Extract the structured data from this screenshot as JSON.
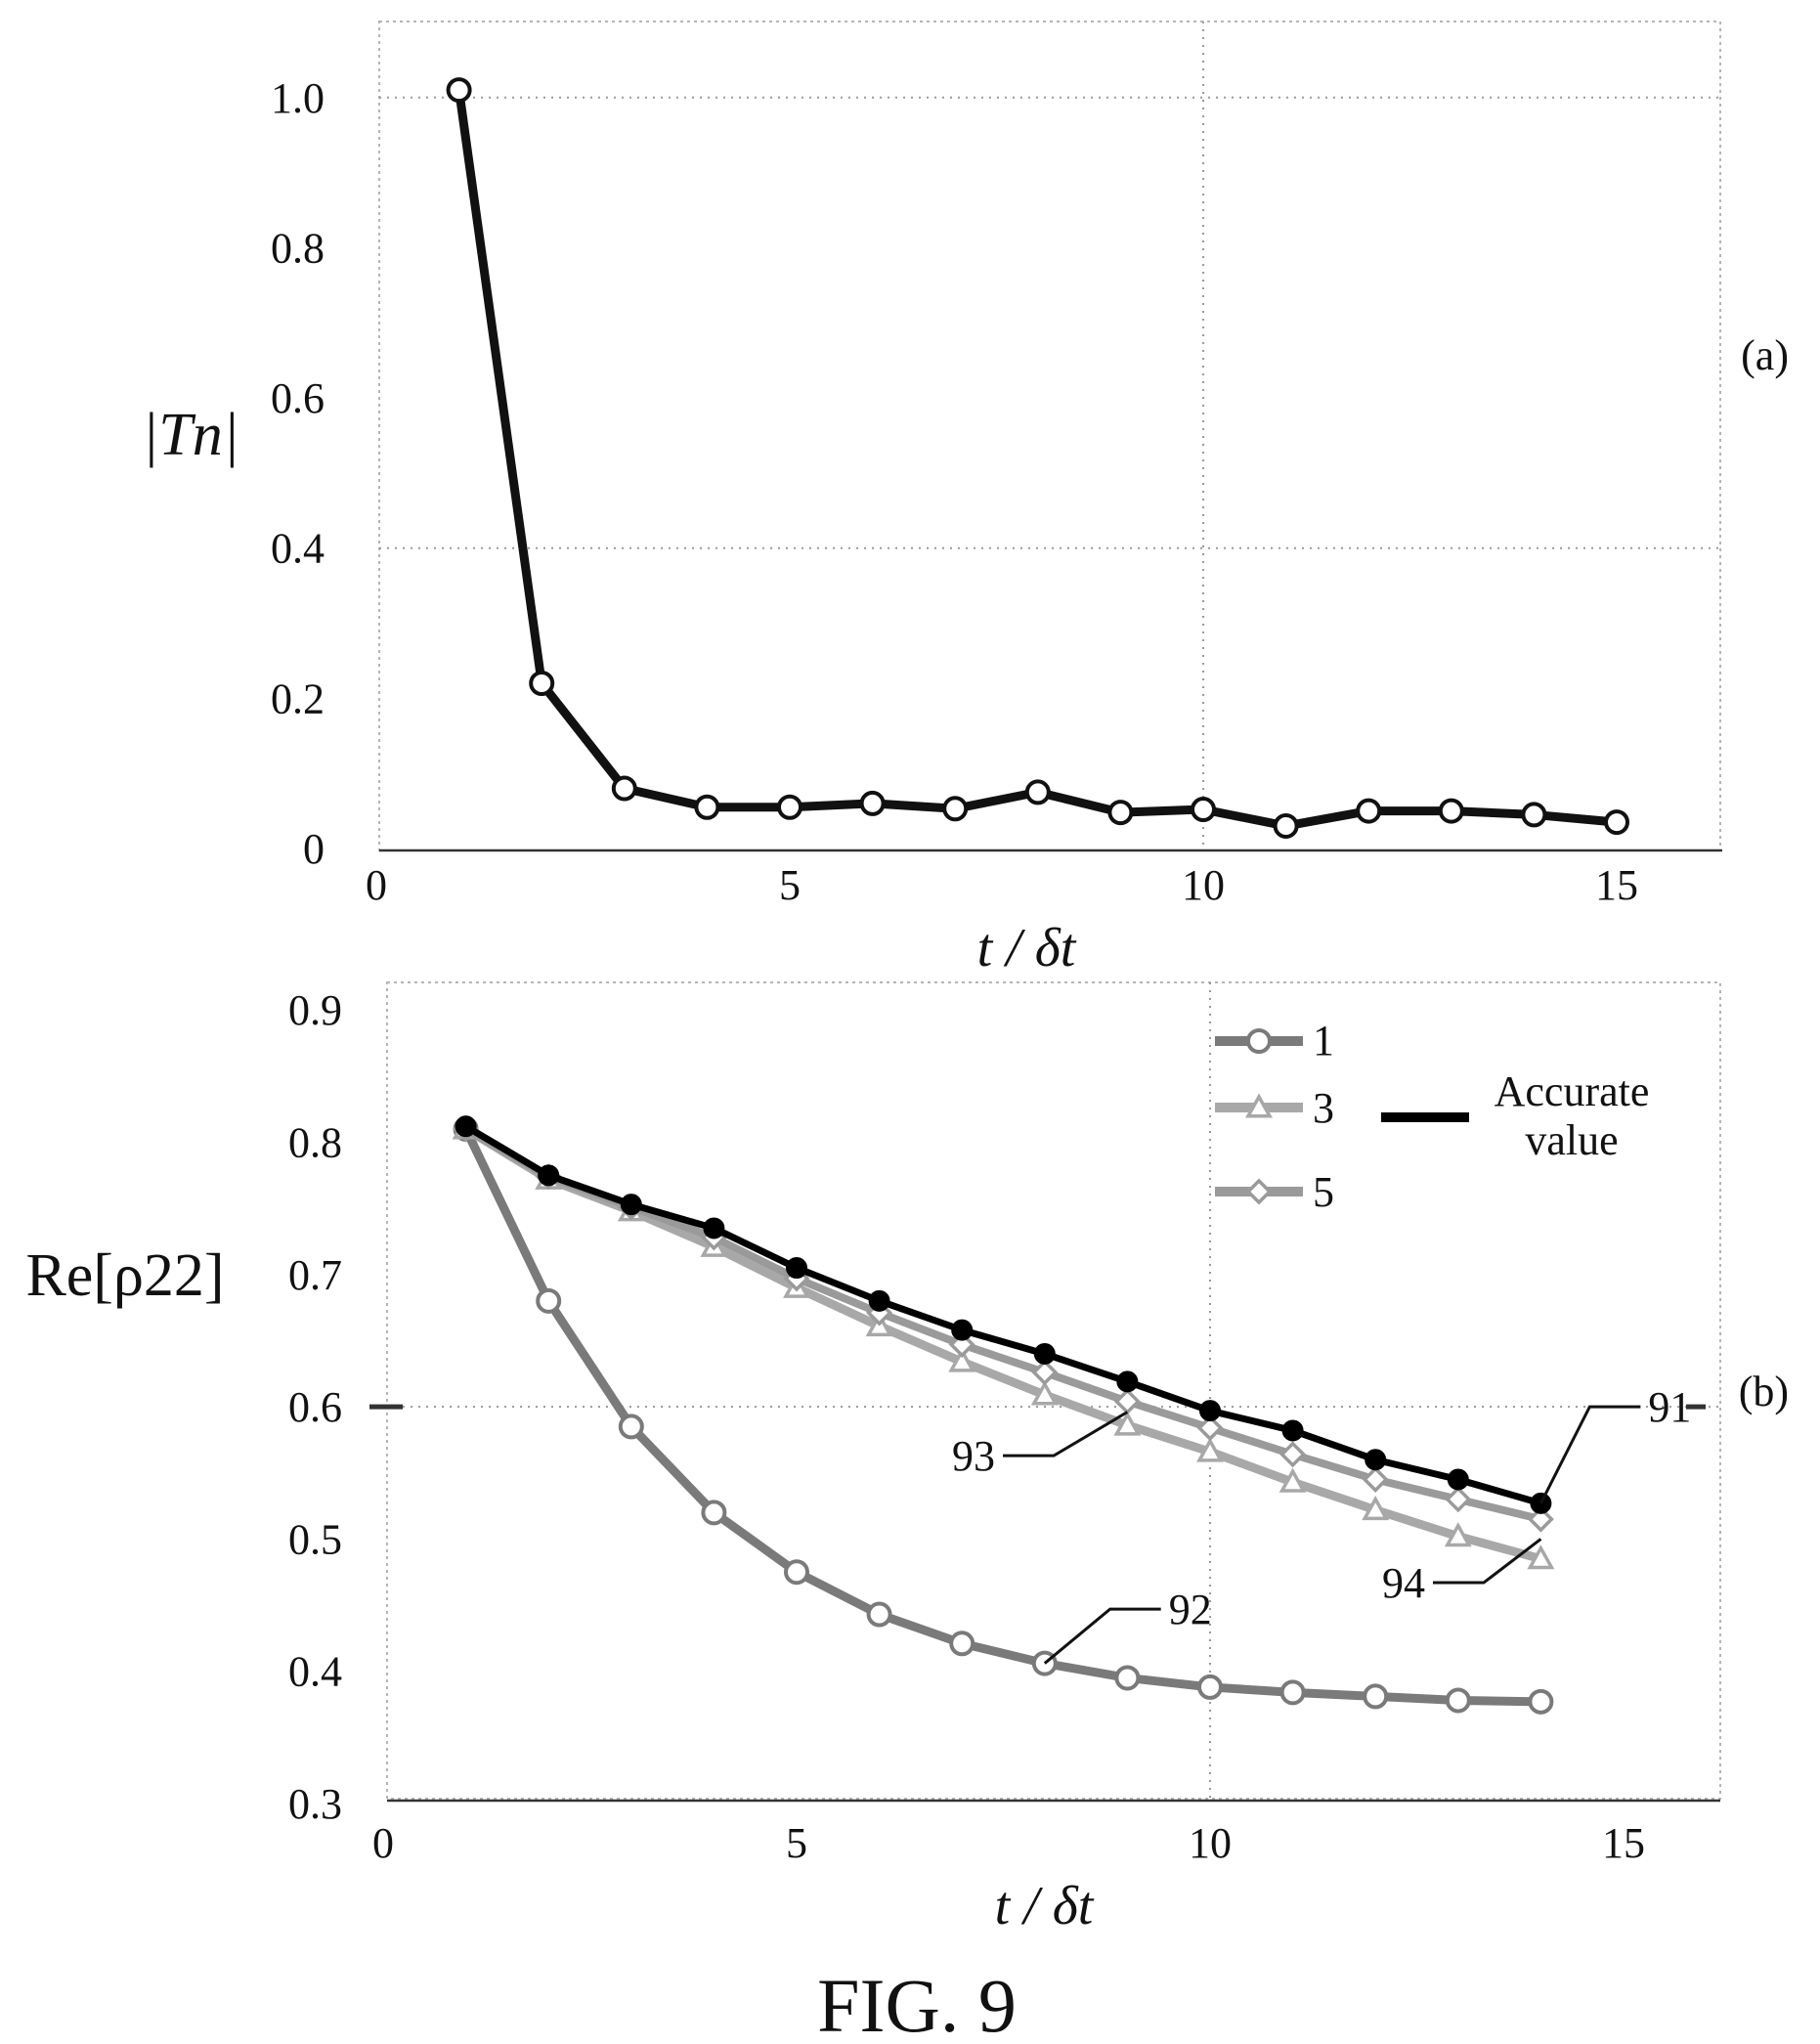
{
  "figure_caption": "FIG. 9",
  "chart_data": [
    {
      "type": "line",
      "panel_label": "(a)",
      "xlabel": "t / δt",
      "ylabel": "|Tn|",
      "xlim": [
        0,
        16
      ],
      "ylim": [
        0,
        1.1
      ],
      "x_ticks": [
        "0",
        "5",
        "10",
        "15"
      ],
      "y_ticks": [
        "0",
        "0.2",
        "0.4",
        "0.6",
        "0.8",
        "1.0"
      ],
      "grid": true,
      "series": [
        {
          "x": [
            1,
            2,
            3,
            4,
            5,
            6,
            7,
            8,
            9,
            10,
            11,
            12,
            13,
            14,
            15
          ],
          "values": [
            1.01,
            0.22,
            0.08,
            0.055,
            0.055,
            0.06,
            0.053,
            0.075,
            0.048,
            0.052,
            0.03,
            0.05,
            0.05,
            0.045,
            0.035
          ],
          "color": "#111111",
          "marker": "circle-open"
        }
      ]
    },
    {
      "type": "line",
      "panel_label": "(b)",
      "xlabel": "t / δt",
      "ylabel": "Re[ρ22]",
      "xlim": [
        0,
        16
      ],
      "ylim": [
        0.3,
        0.9
      ],
      "x_ticks": [
        "0",
        "5",
        "10",
        "15"
      ],
      "y_ticks": [
        "0.3",
        "0.4",
        "0.5",
        "0.6",
        "0.7",
        "0.8",
        "0.9"
      ],
      "grid": true,
      "legend_position": "top-right",
      "series": [
        {
          "name": "1",
          "x": [
            1,
            2,
            3,
            4,
            5,
            6,
            7,
            8,
            9,
            10,
            11,
            12,
            13,
            14
          ],
          "values": [
            0.81,
            0.68,
            0.585,
            0.52,
            0.475,
            0.443,
            0.421,
            0.406,
            0.395,
            0.388,
            0.384,
            0.381,
            0.378,
            0.377
          ],
          "color": "#7a7a7a",
          "marker": "circle-open"
        },
        {
          "name": "3",
          "x": [
            1,
            2,
            3,
            4,
            5,
            6,
            7,
            8,
            9,
            10,
            11,
            12,
            13,
            14
          ],
          "values": [
            0.81,
            0.772,
            0.748,
            0.721,
            0.69,
            0.661,
            0.634,
            0.609,
            0.586,
            0.566,
            0.543,
            0.522,
            0.502,
            0.485
          ],
          "color": "#a8a8a8",
          "marker": "triangle-open"
        },
        {
          "name": "5",
          "x": [
            1,
            2,
            3,
            4,
            5,
            6,
            7,
            8,
            9,
            10,
            11,
            12,
            13,
            14
          ],
          "values": [
            0.81,
            0.774,
            0.751,
            0.728,
            0.697,
            0.671,
            0.647,
            0.626,
            0.604,
            0.584,
            0.564,
            0.545,
            0.53,
            0.515
          ],
          "color": "#9a9a9a",
          "marker": "diamond-open"
        },
        {
          "name": "Accurate value",
          "x": [
            1,
            2,
            3,
            4,
            5,
            6,
            7,
            8,
            9,
            10,
            11,
            12,
            13,
            14
          ],
          "values": [
            0.812,
            0.775,
            0.753,
            0.735,
            0.705,
            0.68,
            0.658,
            0.64,
            0.619,
            0.597,
            0.582,
            0.56,
            0.545,
            0.527
          ],
          "color": "#000000",
          "marker": "circle-filled"
        }
      ],
      "legend": [
        {
          "label": "1"
        },
        {
          "label": "3"
        },
        {
          "label": "5"
        },
        {
          "label_line1": "Accurate",
          "label_line2": "value"
        }
      ],
      "annotations": [
        {
          "text": "91",
          "series": "Accurate value",
          "x": 14,
          "y": 0.527,
          "text_x": 15.3,
          "text_y": 0.6
        },
        {
          "text": "92",
          "series": "1",
          "x": 8,
          "y": 0.406,
          "text_x": 9.5,
          "text_y": 0.447
        },
        {
          "text": "93",
          "series": "3",
          "x": 9,
          "y": 0.596,
          "text_x": 7.4,
          "text_y": 0.563
        },
        {
          "text": "94",
          "series": "5",
          "x": 14,
          "y": 0.5,
          "text_x": 12.6,
          "text_y": 0.467
        }
      ]
    }
  ]
}
